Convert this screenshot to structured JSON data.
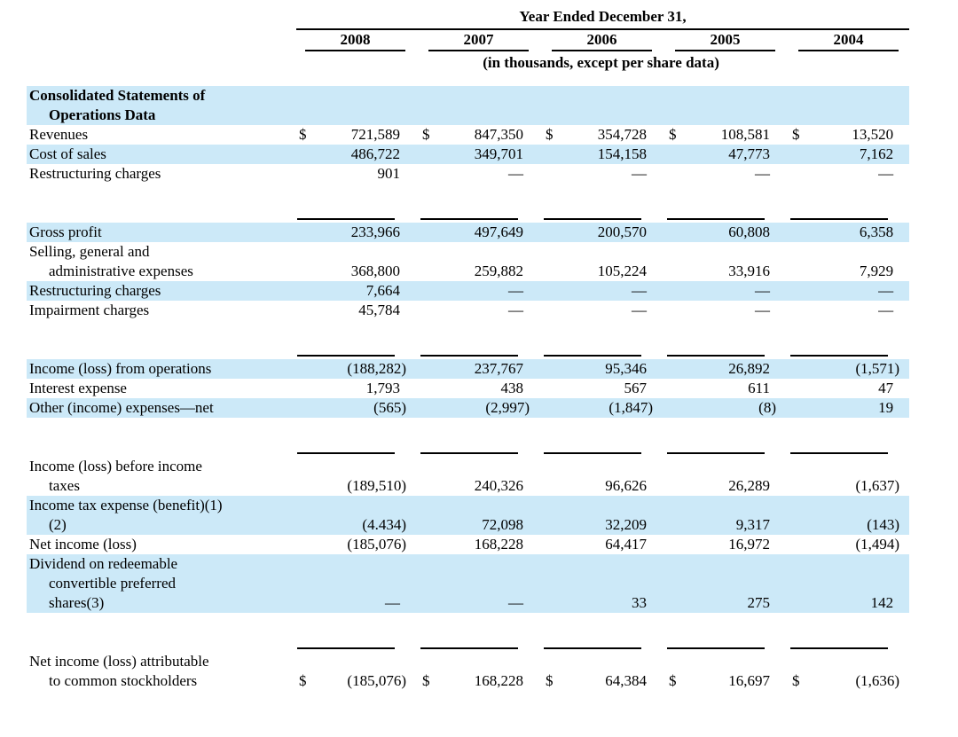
{
  "document": {
    "units_note": "(in thousands, except per share data)"
  },
  "colors": {
    "highlight": "#cce9f8",
    "rule": "#000000",
    "text": "#000000"
  },
  "table": {
    "header": {
      "title": "Year Ended December 31,",
      "years": [
        "2008",
        "2007",
        "2006",
        "2005",
        "2004"
      ],
      "subtitle": "(in thousands, except per share data)"
    },
    "rows": [
      {
        "type": "section",
        "label_lines": [
          "Consolidated Statements of",
          "Operations Data"
        ],
        "highlight": true
      },
      {
        "type": "data",
        "label_lines": [
          "Revenues"
        ],
        "dollar": true,
        "values": [
          "721,589",
          "847,350",
          "354,728",
          "108,581",
          "13,520"
        ],
        "highlight": false
      },
      {
        "type": "data",
        "label_lines": [
          "Cost of sales"
        ],
        "values": [
          "486,722",
          "349,701",
          "154,158",
          "47,773",
          "7,162"
        ],
        "highlight": true
      },
      {
        "type": "data",
        "label_lines": [
          "Restructuring charges"
        ],
        "values": [
          "901",
          "—",
          "—",
          "—",
          "—"
        ],
        "highlight": false
      },
      {
        "type": "spacer",
        "rule": true
      },
      {
        "type": "data",
        "label_lines": [
          "Gross profit"
        ],
        "values": [
          "233,966",
          "497,649",
          "200,570",
          "60,808",
          "6,358"
        ],
        "highlight": true
      },
      {
        "type": "data",
        "label_lines": [
          "Selling, general and",
          "administrative expenses"
        ],
        "values": [
          "368,800",
          "259,882",
          "105,224",
          "33,916",
          "7,929"
        ],
        "highlight": false
      },
      {
        "type": "data",
        "label_lines": [
          "Restructuring charges"
        ],
        "values": [
          "7,664",
          "—",
          "—",
          "—",
          "—"
        ],
        "highlight": true
      },
      {
        "type": "data",
        "label_lines": [
          "Impairment charges"
        ],
        "values": [
          "45,784",
          "—",
          "—",
          "—",
          "—"
        ],
        "highlight": false
      },
      {
        "type": "spacer",
        "rule": true
      },
      {
        "type": "data",
        "label_lines": [
          "Income (loss) from operations"
        ],
        "values": [
          "(188,282)",
          "237,767",
          "95,346",
          "26,892",
          "(1,571)"
        ],
        "highlight": true
      },
      {
        "type": "data",
        "label_lines": [
          "Interest expense"
        ],
        "values": [
          "1,793",
          "438",
          "567",
          "611",
          "47"
        ],
        "highlight": false
      },
      {
        "type": "data",
        "label_lines": [
          "Other (income) expenses—net"
        ],
        "values": [
          "(565)",
          "(2,997)",
          "(1,847)",
          "(8)",
          "19"
        ],
        "highlight": true
      },
      {
        "type": "spacer",
        "rule": true
      },
      {
        "type": "data",
        "label_lines": [
          "Income (loss) before income",
          "taxes"
        ],
        "values": [
          "(189,510)",
          "240,326",
          "96,626",
          "26,289",
          "(1,637)"
        ],
        "highlight": false
      },
      {
        "type": "data",
        "label_lines": [
          "Income tax expense (benefit)(1)",
          "(2)"
        ],
        "values": [
          "(4.434)",
          "72,098",
          "32,209",
          "9,317",
          "(143)"
        ],
        "highlight": true
      },
      {
        "type": "data",
        "label_lines": [
          "Net income (loss)"
        ],
        "values": [
          "(185,076)",
          "168,228",
          "64,417",
          "16,972",
          "(1,494)"
        ],
        "highlight": false
      },
      {
        "type": "data",
        "label_lines": [
          "Dividend on redeemable",
          "convertible preferred",
          "shares(3)"
        ],
        "values": [
          "—",
          "—",
          "33",
          "275",
          "142"
        ],
        "highlight": true
      },
      {
        "type": "spacer",
        "rule": true
      },
      {
        "type": "data",
        "label_lines": [
          "Net income (loss) attributable",
          "to common stockholders"
        ],
        "dollar": true,
        "values": [
          "(185,076)",
          "168,228",
          "64,384",
          "16,697",
          "(1,636)"
        ],
        "highlight": false
      }
    ]
  }
}
